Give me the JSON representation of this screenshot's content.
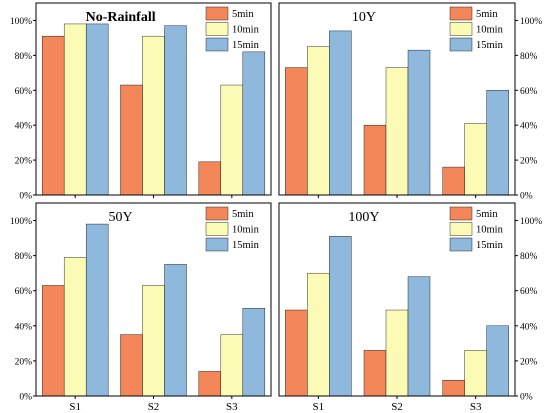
{
  "colors": {
    "5min": "#f4875a",
    "10min": "#fbfbb5",
    "15min": "#8fb9dc",
    "axis": "#000000"
  },
  "chart_data": [
    {
      "type": "bar",
      "title": "No-Rainfall",
      "categories": [
        "S1",
        "S2",
        "S3"
      ],
      "series": [
        {
          "name": "5min",
          "values": [
            91,
            63,
            19
          ]
        },
        {
          "name": "10min",
          "values": [
            98,
            91,
            63
          ]
        },
        {
          "name": "15min",
          "values": [
            98,
            97,
            82
          ]
        }
      ],
      "ylim": [
        0,
        110
      ],
      "yticks": [
        "0%",
        "20%",
        "40%",
        "60%",
        "80%",
        "100%"
      ],
      "yaxis_side": "left",
      "legend": "top-right",
      "grid": false
    },
    {
      "type": "bar",
      "title": "10Y",
      "categories": [
        "S1",
        "S2",
        "S3"
      ],
      "series": [
        {
          "name": "5min",
          "values": [
            73,
            40,
            16
          ]
        },
        {
          "name": "10min",
          "values": [
            85,
            73,
            41
          ]
        },
        {
          "name": "15min",
          "values": [
            94,
            83,
            60
          ]
        }
      ],
      "ylim": [
        0,
        110
      ],
      "yticks": [
        "0%",
        "20%",
        "40%",
        "60%",
        "80%",
        "100%"
      ],
      "yaxis_side": "right",
      "legend": "top-right",
      "grid": false
    },
    {
      "type": "bar",
      "title": "50Y",
      "categories": [
        "S1",
        "S2",
        "S3"
      ],
      "series": [
        {
          "name": "5min",
          "values": [
            63,
            35,
            14
          ]
        },
        {
          "name": "10min",
          "values": [
            79,
            63,
            35
          ]
        },
        {
          "name": "15min",
          "values": [
            98,
            75,
            50
          ]
        }
      ],
      "ylim": [
        0,
        110
      ],
      "yticks": [
        "0%",
        "20%",
        "40%",
        "60%",
        "80%",
        "100%"
      ],
      "yaxis_side": "left",
      "legend": "top-right",
      "grid": false
    },
    {
      "type": "bar",
      "title": "100Y",
      "categories": [
        "S1",
        "S2",
        "S3"
      ],
      "series": [
        {
          "name": "5min",
          "values": [
            49,
            26,
            9
          ]
        },
        {
          "name": "10min",
          "values": [
            70,
            49,
            26
          ]
        },
        {
          "name": "15min",
          "values": [
            91,
            68,
            40
          ]
        }
      ],
      "ylim": [
        0,
        110
      ],
      "yticks": [
        "0%",
        "20%",
        "40%",
        "60%",
        "80%",
        "100%"
      ],
      "yaxis_side": "right",
      "legend": "top-right",
      "grid": false
    }
  ]
}
